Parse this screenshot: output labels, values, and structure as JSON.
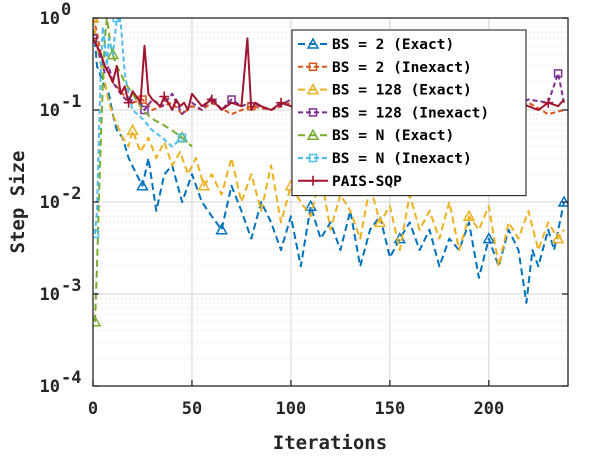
{
  "chart_data": {
    "type": "line",
    "xlabel": "Iterations",
    "ylabel": "Step Size",
    "xlim": [
      0,
      240
    ],
    "ylim": [
      0.0001,
      1
    ],
    "yscale": "log",
    "grid": true,
    "legend_placement": "top-right",
    "x_ticks": [
      "0",
      "50",
      "100",
      "150",
      "200"
    ],
    "y_ticks": [
      {
        "base": "10",
        "exp": "-4"
      },
      {
        "base": "10",
        "exp": "-3"
      },
      {
        "base": "10",
        "exp": "-2"
      },
      {
        "base": "10",
        "exp": "-1"
      },
      {
        "base": "10",
        "exp": "0"
      }
    ],
    "series": [
      {
        "name": "BS = 2 (Exact)",
        "color": "#0072BD",
        "dash": "7,4",
        "marker": "triangle",
        "x": [
          0,
          2,
          5,
          8,
          10,
          12,
          15,
          18,
          22,
          25,
          28,
          32,
          36,
          40,
          45,
          50,
          55,
          60,
          65,
          70,
          75,
          80,
          85,
          90,
          95,
          100,
          105,
          110,
          115,
          120,
          125,
          130,
          135,
          140,
          145,
          150,
          155,
          160,
          165,
          170,
          175,
          180,
          185,
          190,
          195,
          200,
          205,
          210,
          215,
          219,
          222,
          225,
          230,
          233,
          238
        ],
        "y": [
          1.0,
          0.3,
          0.2,
          0.15,
          0.09,
          0.06,
          0.05,
          0.03,
          0.02,
          0.015,
          0.03,
          0.008,
          0.02,
          0.025,
          0.01,
          0.02,
          0.01,
          0.007,
          0.005,
          0.015,
          0.008,
          0.004,
          0.01,
          0.006,
          0.003,
          0.007,
          0.002,
          0.009,
          0.004,
          0.006,
          0.003,
          0.008,
          0.002,
          0.005,
          0.007,
          0.0025,
          0.004,
          0.006,
          0.003,
          0.005,
          0.002,
          0.004,
          0.003,
          0.006,
          0.0015,
          0.004,
          0.002,
          0.005,
          0.003,
          0.0008,
          0.003,
          0.002,
          0.005,
          0.003,
          0.01
        ]
      },
      {
        "name": "BS = 2 (Inexact)",
        "color": "#D95319",
        "dash": "5,3",
        "marker": "square",
        "x": [
          0,
          2,
          4,
          6,
          8,
          10,
          12,
          15,
          20,
          25,
          30,
          35,
          40,
          45,
          50,
          55,
          60,
          70,
          80,
          90,
          100,
          110,
          120,
          130,
          140,
          150,
          160,
          170,
          180,
          190,
          200,
          210,
          220,
          230,
          238
        ],
        "y": [
          1.0,
          0.7,
          0.4,
          0.3,
          0.25,
          0.2,
          0.18,
          0.15,
          0.12,
          0.13,
          0.1,
          0.11,
          0.12,
          0.09,
          0.11,
          0.1,
          0.12,
          0.09,
          0.11,
          0.1,
          0.12,
          0.09,
          0.11,
          0.1,
          0.12,
          0.09,
          0.11,
          0.1,
          0.12,
          0.09,
          0.11,
          0.1,
          0.12,
          0.09,
          0.1
        ]
      },
      {
        "name": "BS = 128 (Exact)",
        "color": "#EDB120",
        "dash": "7,4",
        "marker": "triangle",
        "x": [
          0,
          2,
          4,
          6,
          8,
          10,
          12,
          15,
          18,
          20,
          24,
          28,
          32,
          36,
          40,
          44,
          48,
          52,
          56,
          60,
          65,
          70,
          75,
          80,
          85,
          90,
          95,
          100,
          105,
          110,
          115,
          120,
          125,
          130,
          135,
          140,
          145,
          150,
          155,
          160,
          165,
          170,
          175,
          180,
          185,
          190,
          195,
          200,
          205,
          210,
          215,
          220,
          225,
          230,
          235,
          238
        ],
        "y": [
          1.0,
          0.5,
          0.3,
          0.2,
          0.12,
          0.09,
          0.07,
          0.05,
          0.04,
          0.06,
          0.035,
          0.05,
          0.03,
          0.045,
          0.025,
          0.035,
          0.02,
          0.03,
          0.015,
          0.02,
          0.012,
          0.03,
          0.01,
          0.02,
          0.008,
          0.025,
          0.006,
          0.015,
          0.01,
          0.007,
          0.02,
          0.005,
          0.012,
          0.008,
          0.004,
          0.015,
          0.006,
          0.009,
          0.003,
          0.012,
          0.005,
          0.008,
          0.004,
          0.01,
          0.003,
          0.007,
          0.005,
          0.009,
          0.002,
          0.006,
          0.004,
          0.008,
          0.003,
          0.006,
          0.004,
          0.005
        ]
      },
      {
        "name": "BS = 128 (Inexact)",
        "color": "#7E2F8E",
        "dash": "5,3",
        "marker": "square",
        "x": [
          0,
          2,
          4,
          6,
          8,
          10,
          14,
          18,
          22,
          26,
          30,
          35,
          40,
          45,
          50,
          55,
          60,
          65,
          70,
          75,
          80,
          90,
          100,
          110,
          120,
          130,
          140,
          150,
          160,
          170,
          180,
          190,
          200,
          210,
          220,
          230,
          235,
          238
        ],
        "y": [
          0.6,
          0.5,
          0.35,
          0.25,
          0.3,
          0.2,
          0.15,
          0.12,
          0.14,
          0.1,
          0.13,
          0.11,
          0.15,
          0.09,
          0.12,
          0.1,
          0.14,
          0.1,
          0.13,
          0.11,
          0.12,
          0.1,
          0.13,
          0.11,
          0.12,
          0.1,
          0.13,
          0.11,
          0.12,
          0.1,
          0.13,
          0.11,
          0.12,
          0.1,
          0.13,
          0.12,
          0.25,
          0.12
        ]
      },
      {
        "name": "BS = N (Exact)",
        "color": "#77AC30",
        "dash": "7,4",
        "marker": "triangle",
        "x": [
          1,
          2,
          3,
          4,
          5,
          6,
          7,
          8,
          9,
          10,
          12,
          14,
          16,
          20,
          25,
          30,
          35,
          40,
          45,
          50
        ],
        "y": [
          0.0005,
          0.002,
          0.01,
          0.05,
          0.2,
          0.6,
          1.0,
          0.7,
          0.5,
          0.4,
          0.3,
          0.25,
          0.2,
          0.15,
          0.1,
          0.08,
          0.07,
          0.06,
          0.05,
          0.04
        ]
      },
      {
        "name": "BS = N (Inexact)",
        "color": "#4DBEEE",
        "dash": "5,3",
        "marker": "square",
        "x": [
          1,
          2,
          3,
          4,
          5,
          6,
          7,
          8,
          10,
          12,
          14,
          16,
          18,
          20,
          25,
          30,
          35,
          40,
          45
        ],
        "y": [
          0.0045,
          0.008,
          0.05,
          0.3,
          0.8,
          0.5,
          0.3,
          0.6,
          0.4,
          1.0,
          0.9,
          0.25,
          0.15,
          0.1,
          0.08,
          0.06,
          0.05,
          0.04,
          0.05
        ]
      },
      {
        "name": "PAIS-SQP",
        "color": "#A2142F",
        "dash": "",
        "marker": "plus",
        "x": [
          0,
          2,
          4,
          6,
          8,
          10,
          12,
          14,
          16,
          18,
          20,
          22,
          24,
          26,
          28,
          30,
          32,
          34,
          36,
          38,
          40,
          42,
          44,
          46,
          48,
          50,
          55,
          60,
          65,
          70,
          75,
          78,
          80,
          82,
          85,
          90,
          95,
          100,
          105,
          110,
          115,
          120,
          125,
          130,
          135,
          140,
          145,
          150,
          155,
          160,
          165,
          170,
          175,
          180,
          185,
          190,
          195,
          200,
          205,
          210,
          215,
          220,
          225,
          230,
          235,
          238
        ],
        "y": [
          0.6,
          0.5,
          0.4,
          0.3,
          0.25,
          0.2,
          0.3,
          0.15,
          0.18,
          0.12,
          0.16,
          0.14,
          0.12,
          0.5,
          0.15,
          0.13,
          0.12,
          0.11,
          0.14,
          0.12,
          0.1,
          0.13,
          0.11,
          0.12,
          0.1,
          0.15,
          0.11,
          0.13,
          0.1,
          0.12,
          0.11,
          0.6,
          0.1,
          0.12,
          0.11,
          0.1,
          0.12,
          0.11,
          0.1,
          0.12,
          0.11,
          0.1,
          0.12,
          0.11,
          0.1,
          0.12,
          0.11,
          0.1,
          0.12,
          0.11,
          0.1,
          0.12,
          0.11,
          0.1,
          0.12,
          0.11,
          0.1,
          0.12,
          0.11,
          0.1,
          0.12,
          0.11,
          0.1,
          0.12,
          0.11,
          0.13
        ]
      }
    ]
  }
}
